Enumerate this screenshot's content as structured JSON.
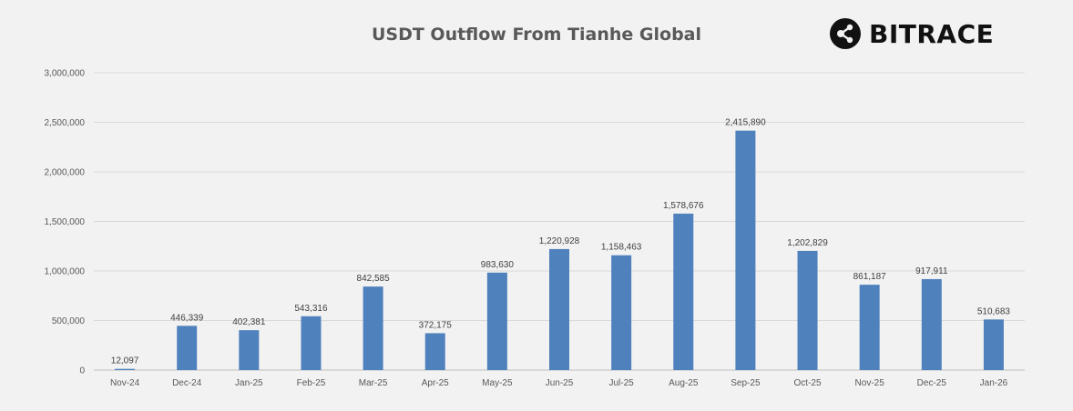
{
  "logo": {
    "text": "BITRACE",
    "icon": "bitrace-logo-icon"
  },
  "colors": {
    "background": "#f2f2f2",
    "bar": "#4f81bd",
    "grid": "#d9d9d9",
    "text": "#595959"
  },
  "chart_data": {
    "type": "bar",
    "title": "USDT Outflow From Tianhe Global",
    "xlabel": "",
    "ylabel": "",
    "categories": [
      "Nov-24",
      "Dec-24",
      "Jan-25",
      "Feb-25",
      "Mar-25",
      "Apr-25",
      "May-25",
      "Jun-25",
      "Jul-25",
      "Aug-25",
      "Sep-25",
      "Oct-25",
      "Nov-25",
      "Dec-25",
      "Jan-26"
    ],
    "values": [
      12097,
      446339,
      402381,
      543316,
      842585,
      372175,
      983630,
      1220928,
      1158463,
      1578676,
      2415890,
      1202829,
      861187,
      917911,
      510683
    ],
    "data_labels": [
      "12,097",
      "446,339",
      "402,381",
      "543,316",
      "842,585",
      "372,175",
      "983,630",
      "1,220,928",
      "1,158,463",
      "1,578,676",
      "2,415,890",
      "1,202,829",
      "861,187",
      "917,911",
      "510,683"
    ],
    "ylim": [
      0,
      3000000
    ],
    "yticks": [
      0,
      500000,
      1000000,
      1500000,
      2000000,
      2500000,
      3000000
    ],
    "ytick_labels": [
      "0",
      "500,000",
      "1,000,000",
      "1,500,000",
      "2,000,000",
      "2,500,000",
      "3,000,000"
    ],
    "grid": true,
    "legend": "none"
  }
}
